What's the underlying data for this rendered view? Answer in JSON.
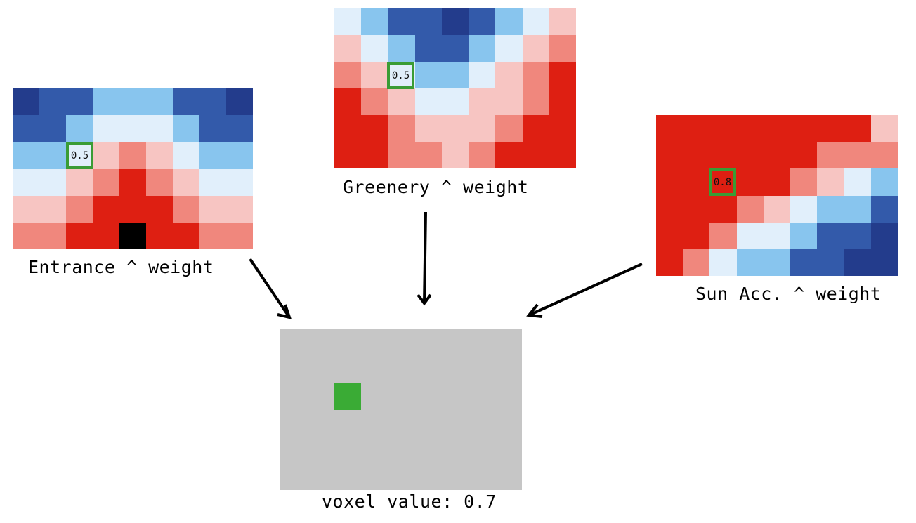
{
  "colors": {
    "0": "#233c8c",
    "1": "#335aaa",
    "2": "#88c5ee",
    "3": "#e1effb",
    "4": "#f7c5c2",
    "5": "#f0877d",
    "6": "#de1f12",
    "7": "#000000",
    "highlight": "#3a9c35",
    "voxel_bg": "#c6c6c6",
    "voxel_marker": "#3aab35"
  },
  "maps": {
    "entrance": {
      "label": "Entrance ^ weight",
      "highlight_value": "0.5",
      "rows": [
        [
          0,
          1,
          1,
          2,
          2,
          2,
          1,
          1,
          0
        ],
        [
          1,
          1,
          2,
          3,
          3,
          3,
          2,
          1,
          1
        ],
        [
          2,
          2,
          3,
          4,
          5,
          4,
          3,
          2,
          2
        ],
        [
          3,
          3,
          4,
          5,
          6,
          5,
          4,
          3,
          3
        ],
        [
          4,
          4,
          5,
          6,
          6,
          6,
          5,
          4,
          4
        ],
        [
          5,
          5,
          6,
          6,
          7,
          6,
          6,
          5,
          5
        ]
      ]
    },
    "greenery": {
      "label": "Greenery ^ weight",
      "highlight_value": "0.5",
      "rows": [
        [
          3,
          2,
          1,
          1,
          0,
          1,
          2,
          3,
          4
        ],
        [
          4,
          3,
          2,
          1,
          1,
          2,
          3,
          4,
          5
        ],
        [
          5,
          4,
          3,
          2,
          2,
          3,
          4,
          5,
          6
        ],
        [
          6,
          5,
          4,
          3,
          3,
          4,
          4,
          5,
          6
        ],
        [
          6,
          6,
          5,
          4,
          4,
          4,
          5,
          6,
          6
        ],
        [
          6,
          6,
          5,
          5,
          4,
          5,
          6,
          6,
          6
        ]
      ]
    },
    "sun": {
      "label": "Sun Acc. ^ weight",
      "highlight_value": "0.8",
      "rows": [
        [
          6,
          6,
          6,
          6,
          6,
          6,
          6,
          6,
          4
        ],
        [
          6,
          6,
          6,
          6,
          6,
          6,
          5,
          5,
          5
        ],
        [
          6,
          6,
          6,
          6,
          6,
          5,
          4,
          3,
          2
        ],
        [
          6,
          6,
          6,
          5,
          4,
          3,
          2,
          2,
          1
        ],
        [
          6,
          6,
          5,
          3,
          3,
          2,
          1,
          1,
          0
        ],
        [
          6,
          5,
          3,
          2,
          2,
          1,
          1,
          0,
          0
        ]
      ]
    }
  },
  "voxel": {
    "label": "voxel value: 0.7"
  }
}
